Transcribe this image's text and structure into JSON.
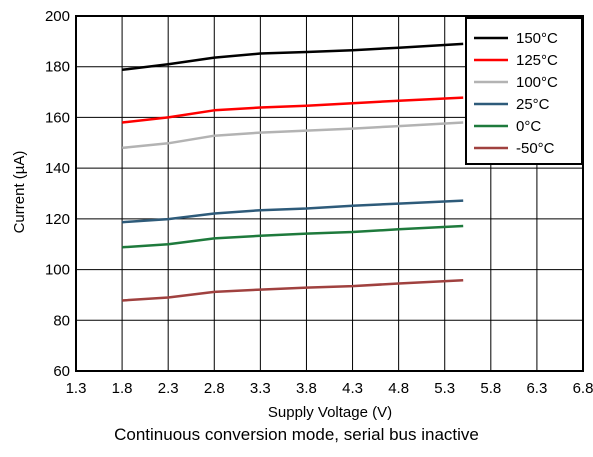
{
  "chart_data": {
    "type": "line",
    "title": "",
    "caption": "Continuous conversion mode, serial bus inactive",
    "xlabel": "Supply Voltage (V)",
    "ylabel": "Current (µA)",
    "xlim": [
      1.3,
      6.8
    ],
    "ylim": [
      60,
      200
    ],
    "xticks": [
      "1.3",
      "1.8",
      "2.3",
      "2.8",
      "3.3",
      "3.8",
      "4.3",
      "4.8",
      "5.3",
      "5.8",
      "6.3",
      "6.8"
    ],
    "yticks": [
      "60",
      "80",
      "100",
      "120",
      "140",
      "160",
      "180",
      "200"
    ],
    "grid": true,
    "legend_position": "top-right",
    "x": [
      1.8,
      2.3,
      2.8,
      3.3,
      3.8,
      4.3,
      4.8,
      5.5
    ],
    "series": [
      {
        "name": "150°C",
        "color": "#000000",
        "values": [
          178.8,
          181.0,
          183.6,
          185.2,
          185.8,
          186.5,
          187.5,
          189.0
        ]
      },
      {
        "name": "125°C",
        "color": "#ff0000",
        "values": [
          158.0,
          160.0,
          162.8,
          163.9,
          164.6,
          165.6,
          166.6,
          167.8
        ]
      },
      {
        "name": "100°C",
        "color": "#b3b3b3",
        "values": [
          148.0,
          149.8,
          152.8,
          154.0,
          154.8,
          155.6,
          156.6,
          158.0
        ]
      },
      {
        "name": "25°C",
        "color": "#2e5b7a",
        "values": [
          118.7,
          119.9,
          122.1,
          123.4,
          124.1,
          125.2,
          126.0,
          127.2
        ]
      },
      {
        "name": "0°C",
        "color": "#1e7a3c",
        "values": [
          108.8,
          110.0,
          112.3,
          113.3,
          114.2,
          114.8,
          115.9,
          117.2
        ]
      },
      {
        "name": "-50°C",
        "color": "#a0413f",
        "values": [
          87.8,
          89.0,
          91.2,
          92.1,
          92.9,
          93.5,
          94.5,
          95.8
        ]
      }
    ]
  }
}
